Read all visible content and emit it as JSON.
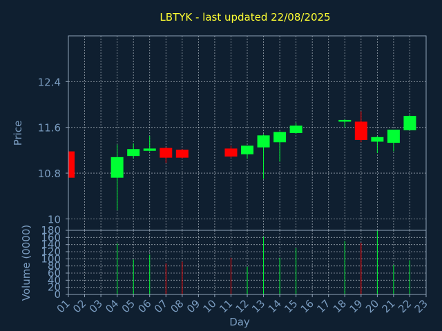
{
  "colors": {
    "background": "#0f1f30",
    "plot_background": "#0f1f30",
    "frame": "#8fa3b8",
    "grid": "#c8d0d8",
    "title": "#ffff33",
    "axis_text": "#7a9cc0",
    "up": "#00ff33",
    "down": "#ff0000"
  },
  "chart_data": {
    "type": "candlestick",
    "title": "LBTYK - last updated 22/08/2025",
    "xlabel": "Day",
    "ylabel_price": "Price",
    "ylabel_volume": "Volume (0000)",
    "x_ticks": [
      "01",
      "02",
      "03",
      "04",
      "05",
      "06",
      "07",
      "08",
      "09",
      "10",
      "11",
      "12",
      "13",
      "14",
      "15",
      "16",
      "17",
      "18",
      "19",
      "20",
      "21",
      "22",
      "23"
    ],
    "price_ticks": [
      10,
      10.8,
      11.6,
      12.4
    ],
    "price_tick_labels": [
      "10",
      "10.8",
      "11.6",
      "12.4"
    ],
    "price_ylim": [
      9.8,
      13.2
    ],
    "volume_ticks": [
      0,
      20,
      40,
      60,
      80,
      100,
      120,
      140,
      160,
      180
    ],
    "volume_tick_labels": [
      "0",
      "20",
      "40",
      "60",
      "80",
      "100",
      "120",
      "140",
      "160",
      "180"
    ],
    "volume_ylim": [
      0,
      180
    ],
    "xlim": [
      1,
      23
    ],
    "grid": true,
    "candles": [
      {
        "day": 1,
        "open": 11.18,
        "high": 11.18,
        "low": 10.72,
        "close": 10.72,
        "volume": 0
      },
      {
        "day": 4,
        "open": 10.72,
        "high": 11.3,
        "low": 10.15,
        "close": 11.08,
        "volume": 143
      },
      {
        "day": 5,
        "open": 11.1,
        "high": 11.32,
        "low": 11.06,
        "close": 11.22,
        "volume": 98
      },
      {
        "day": 6,
        "open": 11.19,
        "high": 11.45,
        "low": 11.18,
        "close": 11.23,
        "volume": 112
      },
      {
        "day": 7,
        "open": 11.24,
        "high": 11.25,
        "low": 10.98,
        "close": 11.07,
        "volume": 87
      },
      {
        "day": 8,
        "open": 11.21,
        "high": 11.22,
        "low": 11.06,
        "close": 11.07,
        "volume": 92
      },
      {
        "day": 11,
        "open": 11.23,
        "high": 11.28,
        "low": 11.07,
        "close": 11.09,
        "volume": 103
      },
      {
        "day": 12,
        "open": 11.13,
        "high": 11.28,
        "low": 11.05,
        "close": 11.28,
        "volume": 78
      },
      {
        "day": 13,
        "open": 11.25,
        "high": 11.48,
        "low": 10.7,
        "close": 11.46,
        "volume": 162
      },
      {
        "day": 14,
        "open": 11.34,
        "high": 11.53,
        "low": 11.0,
        "close": 11.52,
        "volume": 103
      },
      {
        "day": 15,
        "open": 11.5,
        "high": 11.68,
        "low": 11.49,
        "close": 11.63,
        "volume": 130
      },
      {
        "day": 18,
        "open": 11.7,
        "high": 11.74,
        "low": 11.6,
        "close": 11.73,
        "volume": 150
      },
      {
        "day": 19,
        "open": 11.7,
        "high": 11.88,
        "low": 11.34,
        "close": 11.38,
        "volume": 145
      },
      {
        "day": 20,
        "open": 11.35,
        "high": 11.45,
        "low": 11.15,
        "close": 11.43,
        "volume": 180
      },
      {
        "day": 21,
        "open": 11.33,
        "high": 11.56,
        "low": 11.18,
        "close": 11.56,
        "volume": 83
      },
      {
        "day": 22,
        "open": 11.55,
        "high": 11.82,
        "low": 11.55,
        "close": 11.8,
        "volume": 96
      }
    ]
  }
}
